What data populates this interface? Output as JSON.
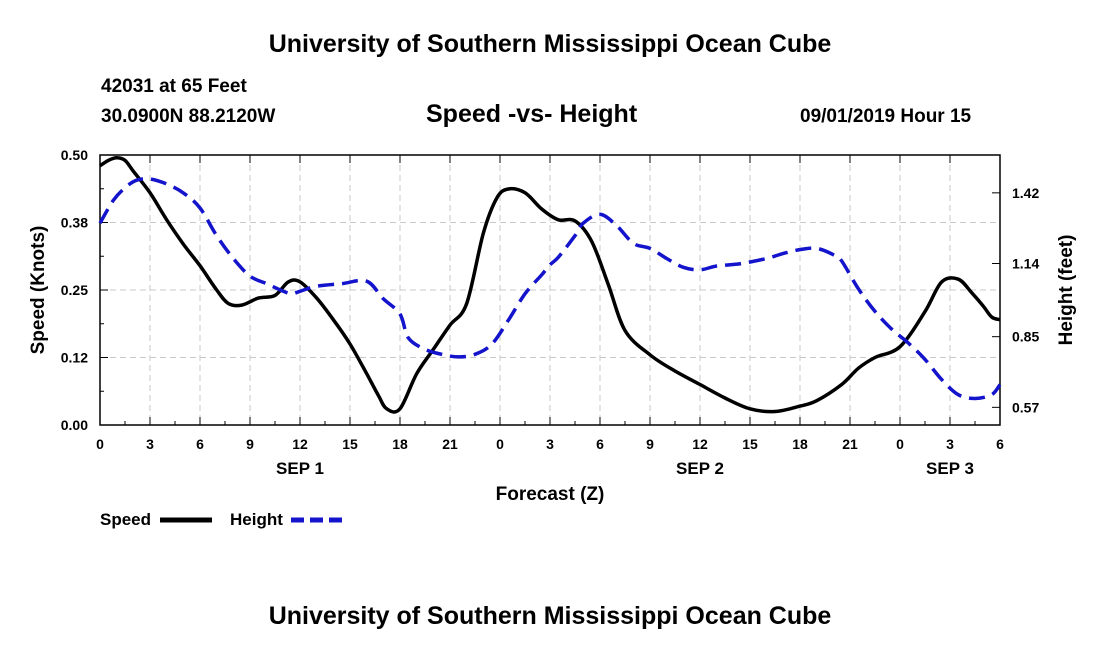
{
  "header": {
    "title": "University of Southern Mississippi Ocean Cube",
    "station": "42031 at 65 Feet",
    "coords": "30.0900N 88.2120W",
    "plot_title": "Speed -vs- Height",
    "datetime": "09/01/2019 Hour 15"
  },
  "footer": {
    "title": "University of Southern Mississippi Ocean Cube"
  },
  "legend": {
    "speed_label": "Speed",
    "height_label": "Height"
  },
  "colors": {
    "speed": "#000000",
    "height": "#1414cc",
    "grid": "#c8c8c8"
  },
  "chart_data": {
    "type": "line",
    "title": "Speed -vs- Height",
    "xlabel": "Forecast (Z)",
    "ylabel": "Speed (Knots)",
    "y2label": "Height (feet)",
    "x_range": [
      0,
      54
    ],
    "ylim": [
      0,
      0.5
    ],
    "y2lim": [
      0.5,
      1.57
    ],
    "x_ticks": [
      0,
      3,
      6,
      9,
      12,
      15,
      18,
      21,
      24,
      27,
      30,
      33,
      36,
      39,
      42,
      45,
      48,
      51,
      54
    ],
    "x_tick_labels": [
      "0",
      "3",
      "6",
      "9",
      "12",
      "15",
      "18",
      "21",
      "0",
      "3",
      "6",
      "9",
      "12",
      "15",
      "18",
      "21",
      "0",
      "3",
      "6"
    ],
    "date_labels": [
      {
        "label": "SEP 1",
        "x": 12
      },
      {
        "label": "SEP 2",
        "x": 36
      },
      {
        "label": "SEP 3",
        "x": 51
      }
    ],
    "y_ticks": [
      0.0,
      0.125,
      0.25,
      0.375,
      0.5
    ],
    "y_tick_labels": [
      "0.00",
      "0.12",
      "0.25",
      "0.38",
      "0.50"
    ],
    "y2_ticks": [
      0.57,
      0.85,
      1.14,
      1.42
    ],
    "y2_tick_labels": [
      "0.57",
      "0.85",
      "1.14",
      "1.42"
    ],
    "grid": true,
    "series": [
      {
        "name": "Speed",
        "axis": "left",
        "style": "solid",
        "x": [
          0,
          0.5,
          1,
          1.5,
          2,
          3,
          4,
          5,
          6,
          7,
          7.7,
          8.5,
          9.5,
          10.5,
          11.3,
          12,
          13,
          14,
          15,
          16,
          16.7,
          17.2,
          18,
          19,
          20,
          21,
          22,
          23,
          23.8,
          24.5,
          25.5,
          26.5,
          27.5,
          28.5,
          29.5,
          30.5,
          31.5,
          33,
          34.5,
          36,
          37.5,
          39,
          40.5,
          42,
          43,
          44.5,
          45.5,
          46.5,
          48,
          49.5,
          50.5,
          51.5,
          52.3,
          53,
          53.5,
          54
        ],
        "values": [
          0.48,
          0.49,
          0.495,
          0.49,
          0.47,
          0.43,
          0.38,
          0.335,
          0.295,
          0.25,
          0.225,
          0.222,
          0.235,
          0.24,
          0.265,
          0.265,
          0.235,
          0.195,
          0.15,
          0.095,
          0.055,
          0.03,
          0.03,
          0.095,
          0.14,
          0.185,
          0.225,
          0.355,
          0.42,
          0.437,
          0.43,
          0.4,
          0.38,
          0.378,
          0.34,
          0.26,
          0.175,
          0.13,
          0.1,
          0.075,
          0.05,
          0.03,
          0.025,
          0.035,
          0.045,
          0.075,
          0.105,
          0.125,
          0.145,
          0.21,
          0.265,
          0.27,
          0.245,
          0.22,
          0.2,
          0.195
        ]
      },
      {
        "name": "Height",
        "axis": "right",
        "style": "dashed",
        "x": [
          0,
          0.8,
          1.5,
          2.2,
          3,
          4,
          5,
          6,
          7,
          8,
          9,
          10,
          11,
          11.5,
          12,
          13,
          14.5,
          16,
          17,
          18,
          18.5,
          19.5,
          20.5,
          21.5,
          22.5,
          23.5,
          24.5,
          25.5,
          26.5,
          27,
          27.5,
          28.5,
          29,
          30,
          31,
          32,
          33,
          34,
          35,
          36,
          37,
          38.5,
          40,
          41,
          42,
          43,
          44,
          44.5,
          45.5,
          46.5,
          47.5,
          48.5,
          49.5,
          50.5,
          51.5,
          52.5,
          53.5,
          54
        ],
        "values": [
          1.3,
          1.39,
          1.44,
          1.47,
          1.475,
          1.455,
          1.42,
          1.36,
          1.25,
          1.16,
          1.09,
          1.06,
          1.03,
          1.02,
          1.03,
          1.05,
          1.06,
          1.07,
          1.0,
          0.94,
          0.845,
          0.8,
          0.78,
          0.77,
          0.78,
          0.82,
          0.915,
          1.02,
          1.095,
          1.135,
          1.165,
          1.25,
          1.3,
          1.335,
          1.29,
          1.22,
          1.2,
          1.16,
          1.125,
          1.115,
          1.13,
          1.14,
          1.16,
          1.18,
          1.195,
          1.2,
          1.175,
          1.15,
          1.04,
          0.95,
          0.88,
          0.825,
          0.76,
          0.68,
          0.62,
          0.605,
          0.62,
          0.66
        ]
      }
    ]
  }
}
